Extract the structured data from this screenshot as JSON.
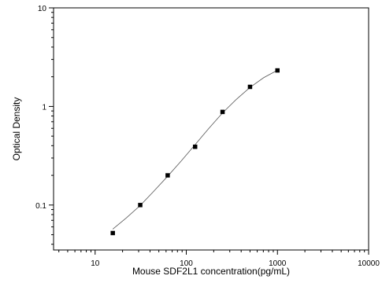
{
  "chart_data": {
    "type": "scatter",
    "title": "",
    "xlabel": "Mouse SDF2L1 concentration(pg/mL)",
    "ylabel": "Optical Density",
    "xscale": "log",
    "yscale": "log",
    "xlim": [
      3.5,
      10000
    ],
    "ylim": [
      0.035,
      10
    ],
    "xticks": [
      10,
      100,
      1000,
      10000
    ],
    "xtick_labels": [
      "10",
      "100",
      "1000",
      "10000"
    ],
    "yticks": [
      0.1,
      1,
      10
    ],
    "ytick_labels": [
      "0.1",
      "1",
      "10"
    ],
    "grid": false,
    "legend": "none",
    "series": [
      {
        "marker": "square",
        "color": "#000000",
        "points": [
          {
            "x": 15.625,
            "y": 0.052
          },
          {
            "x": 31.25,
            "y": 0.1
          },
          {
            "x": 62.5,
            "y": 0.2
          },
          {
            "x": 125,
            "y": 0.39
          },
          {
            "x": 250,
            "y": 0.88
          },
          {
            "x": 500,
            "y": 1.58
          },
          {
            "x": 1000,
            "y": 2.32
          }
        ]
      }
    ],
    "fit_curve": {
      "color": "#555555",
      "points": [
        {
          "x": 15.625,
          "y": 0.057
        },
        {
          "x": 22,
          "y": 0.074
        },
        {
          "x": 31.25,
          "y": 0.099
        },
        {
          "x": 44,
          "y": 0.138
        },
        {
          "x": 62.5,
          "y": 0.196
        },
        {
          "x": 88,
          "y": 0.28
        },
        {
          "x": 125,
          "y": 0.41
        },
        {
          "x": 177,
          "y": 0.6
        },
        {
          "x": 250,
          "y": 0.86
        },
        {
          "x": 354,
          "y": 1.18
        },
        {
          "x": 500,
          "y": 1.56
        },
        {
          "x": 707,
          "y": 1.96
        },
        {
          "x": 1000,
          "y": 2.33
        }
      ]
    }
  }
}
